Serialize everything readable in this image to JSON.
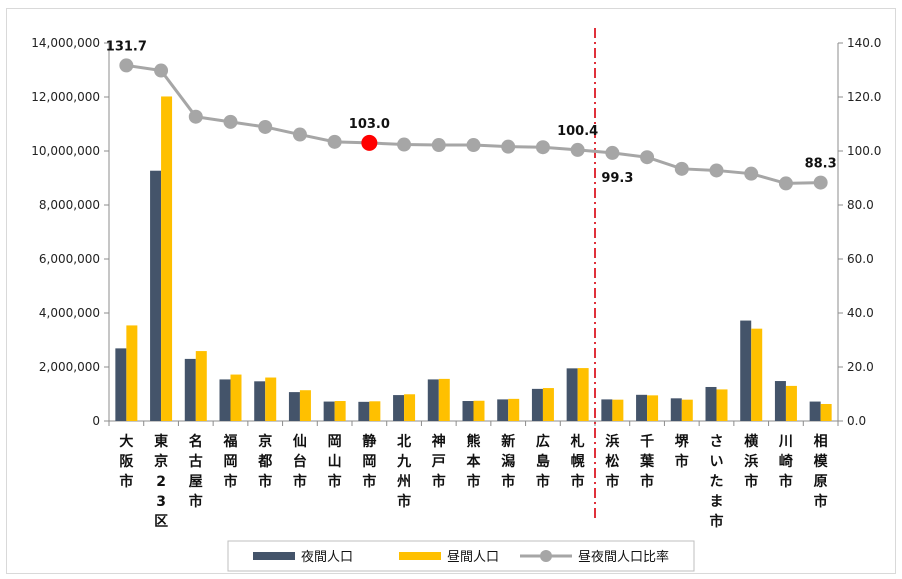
{
  "chart_data": {
    "type": "bar",
    "categories": [
      "大阪市",
      "東京23区",
      "名古屋市",
      "福岡市",
      "京都市",
      "仙台市",
      "岡山市",
      "静岡市",
      "北九州市",
      "神戸市",
      "熊本市",
      "新潟市",
      "広島市",
      "札幌市",
      "浜松市",
      "千葉市",
      "堺市",
      "さいたま市",
      "横浜市",
      "川崎市",
      "相模原市"
    ],
    "category_glyphs": [
      [
        "大",
        "阪",
        "市"
      ],
      [
        "東",
        "京",
        "2",
        "3",
        "区"
      ],
      [
        "名",
        "古",
        "屋",
        "市"
      ],
      [
        "福",
        "岡",
        "市"
      ],
      [
        "京",
        "都",
        "市"
      ],
      [
        "仙",
        "台",
        "市"
      ],
      [
        "岡",
        "山",
        "市"
      ],
      [
        "静",
        "岡",
        "市"
      ],
      [
        "北",
        "九",
        "州",
        "市"
      ],
      [
        "神",
        "戸",
        "市"
      ],
      [
        "熊",
        "本",
        "市"
      ],
      [
        "新",
        "潟",
        "市"
      ],
      [
        "広",
        "島",
        "市"
      ],
      [
        "札",
        "幌",
        "市"
      ],
      [
        "浜",
        "松",
        "市"
      ],
      [
        "千",
        "葉",
        "市"
      ],
      [
        "堺",
        "市"
      ],
      [
        "さ",
        "い",
        "た",
        "ま",
        "市"
      ],
      [
        "横",
        "浜",
        "市"
      ],
      [
        "川",
        "崎",
        "市"
      ],
      [
        "相",
        "模",
        "原",
        "市"
      ]
    ],
    "series": [
      {
        "name": "夜間人口",
        "kind": "bar",
        "axis": "left",
        "color": "#44546a",
        "values": [
          2690000,
          9270000,
          2300000,
          1540000,
          1470000,
          1070000,
          720000,
          710000,
          960000,
          1540000,
          740000,
          800000,
          1190000,
          1950000,
          800000,
          970000,
          840000,
          1260000,
          3720000,
          1480000,
          720000
        ]
      },
      {
        "name": "昼間人口",
        "kind": "bar",
        "axis": "left",
        "color": "#ffc000",
        "values": [
          3540000,
          12020000,
          2590000,
          1720000,
          1610000,
          1140000,
          740000,
          730000,
          990000,
          1560000,
          750000,
          820000,
          1220000,
          1960000,
          790000,
          950000,
          790000,
          1170000,
          3420000,
          1300000,
          630000
        ]
      },
      {
        "name": "昼夜間人口比率",
        "kind": "line",
        "axis": "right",
        "color": "#a6a6a6",
        "values": [
          131.7,
          129.8,
          112.7,
          110.8,
          108.9,
          106.1,
          103.4,
          103.0,
          102.4,
          102.2,
          102.2,
          101.6,
          101.4,
          100.4,
          99.3,
          97.7,
          93.4,
          92.8,
          91.6,
          88.0,
          88.3
        ]
      }
    ],
    "highlight_point": {
      "category": "静岡市",
      "color": "#ff0000"
    },
    "data_labels": [
      {
        "category": "大阪市",
        "text": "131.7",
        "pos": "above"
      },
      {
        "category": "静岡市",
        "text": "103.0",
        "pos": "above"
      },
      {
        "category": "札幌市",
        "text": "100.4",
        "pos": "above"
      },
      {
        "category": "浜松市",
        "text": "99.3",
        "pos": "below"
      },
      {
        "category": "相模原市",
        "text": "88.3",
        "pos": "above"
      }
    ],
    "divider": {
      "after_category": "札幌市",
      "color": "#e0303a",
      "style": "dash-dot"
    },
    "y_left": {
      "min": 0,
      "max": 14000000,
      "step": 2000000,
      "tick_labels": [
        "0",
        "2,000,000",
        "4,000,000",
        "6,000,000",
        "8,000,000",
        "10,000,000",
        "12,000,000",
        "14,000,000"
      ]
    },
    "y_right": {
      "min": 0,
      "max": 140,
      "step": 20,
      "tick_labels": [
        "0.0",
        "20.0",
        "40.0",
        "60.0",
        "80.0",
        "100.0",
        "120.0",
        "140.0"
      ]
    },
    "grid": false,
    "legend_position": "bottom"
  }
}
